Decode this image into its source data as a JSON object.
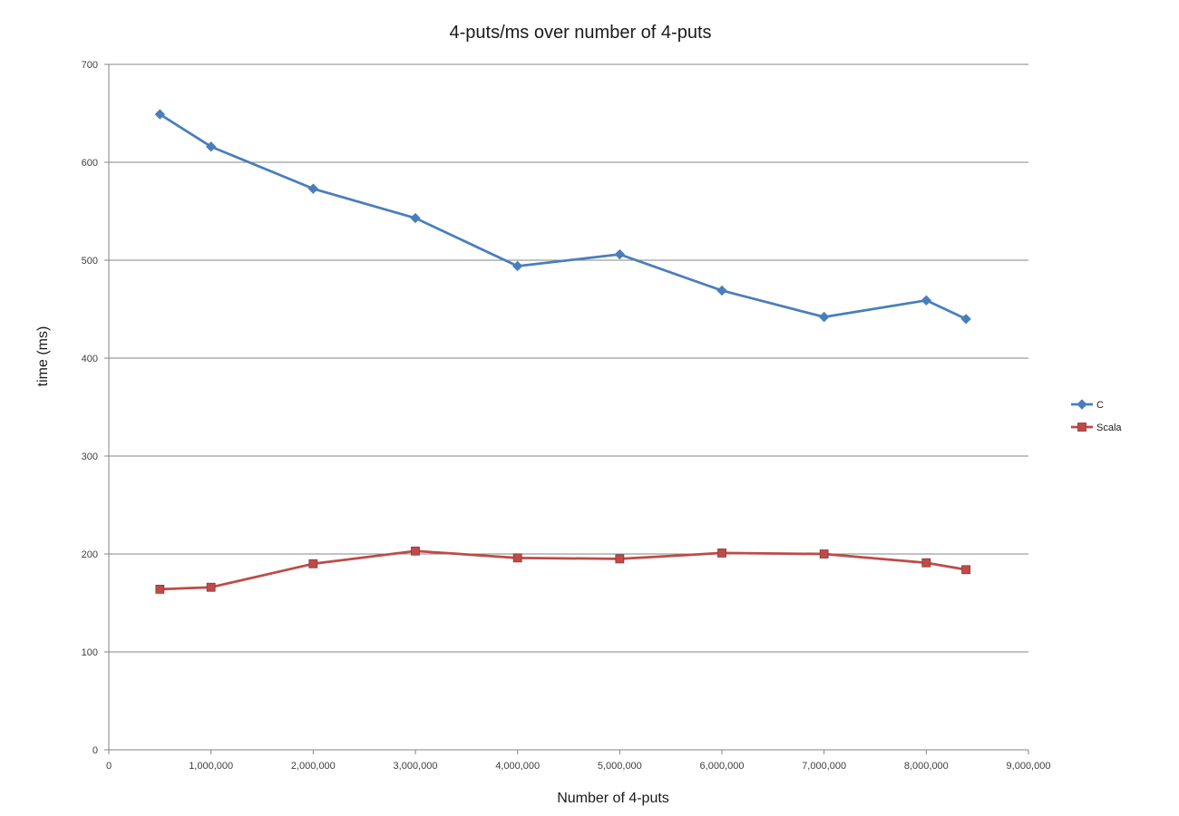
{
  "chart_data": {
    "type": "line",
    "title": "4-puts/ms over number of 4-puts",
    "xlabel": "Number of 4-puts",
    "ylabel": "time (ms)",
    "xlim": [
      0,
      9000000
    ],
    "ylim": [
      0,
      700
    ],
    "x_ticks": [
      0,
      1000000,
      2000000,
      3000000,
      4000000,
      5000000,
      6000000,
      7000000,
      8000000,
      9000000
    ],
    "x_tick_labels": [
      "0",
      "1,000,000",
      "2,000,000",
      "3,000,000",
      "4,000,000",
      "5,000,000",
      "6,000,000",
      "7,000,000",
      "8,000,000",
      "9,000,000"
    ],
    "y_ticks": [
      0,
      100,
      200,
      300,
      400,
      500,
      600,
      700
    ],
    "y_tick_labels": [
      "0",
      "100",
      "200",
      "300",
      "400",
      "500",
      "600",
      "700"
    ],
    "grid": "horizontal",
    "legend_position": "right",
    "series": [
      {
        "name": "C",
        "color": "#4A7EBB",
        "marker": "diamond",
        "x": [
          500000,
          1000000,
          2000000,
          3000000,
          4000000,
          5000000,
          6000000,
          7000000,
          8000000,
          8388608
        ],
        "y": [
          649,
          616,
          573,
          543,
          494,
          506,
          469,
          442,
          459,
          440
        ]
      },
      {
        "name": "Scala",
        "color": "#BE4B48",
        "marker": "square",
        "x": [
          500000,
          1000000,
          2000000,
          3000000,
          4000000,
          5000000,
          6000000,
          7000000,
          8000000,
          8388608
        ],
        "y": [
          164,
          166,
          190,
          203,
          196,
          195,
          201,
          200,
          191,
          184
        ]
      }
    ]
  }
}
